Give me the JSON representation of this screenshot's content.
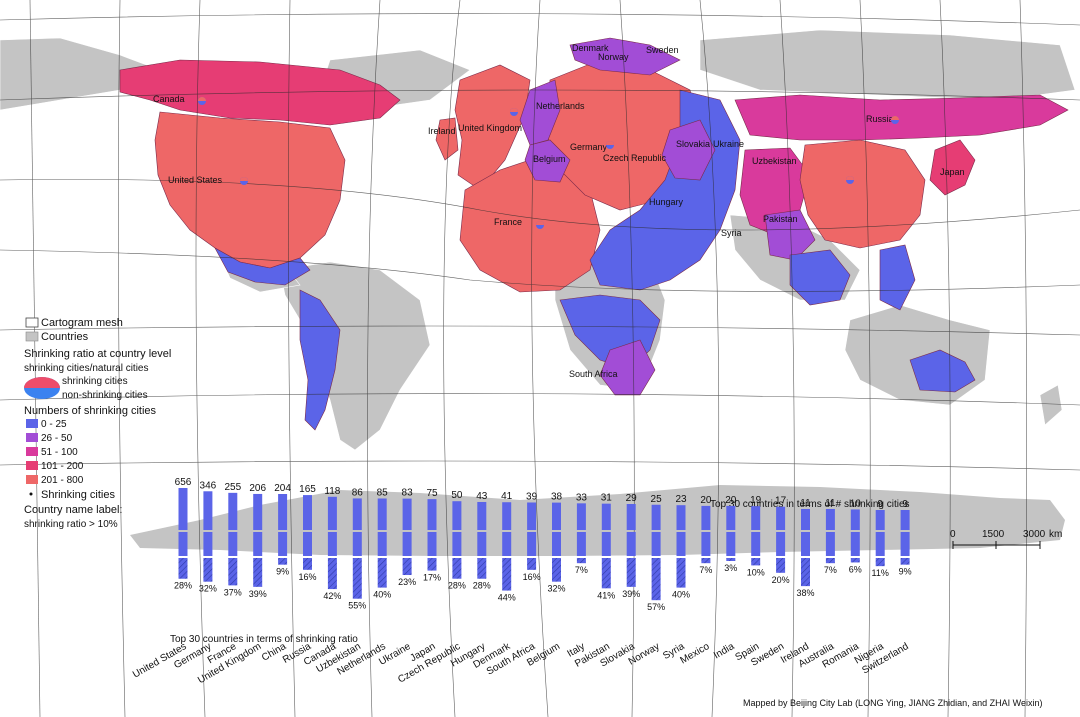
{
  "colors": {
    "ocean": "#ffffff",
    "land_gray": "#c4c4c4",
    "mesh": "#2a2a2a",
    "bin_0_25": "#5b64e8",
    "bin_26_50": "#a24dd6",
    "bin_51_100": "#d93a9c",
    "bin_101_200": "#e63d74",
    "bin_201_800": "#ee6767",
    "bar_fill": "#5b64e8"
  },
  "legend": {
    "mesh_label": "Cartogram mesh",
    "countries_label": "Countries",
    "ratio_title": "Shrinking ratio at country level",
    "ratio_sub": "shrinking cities/natural cities",
    "pie_shrinking": "shrinking cities",
    "pie_nonshrinking": "non-shrinking cities",
    "numbers_title": "Numbers of shrinking cities",
    "bins": [
      {
        "label": "0 - 25",
        "color": "#5b64e8"
      },
      {
        "label": "26 - 50",
        "color": "#a24dd6"
      },
      {
        "label": "51 - 100",
        "color": "#d93a9c"
      },
      {
        "label": "101 - 200",
        "color": "#e63d74"
      },
      {
        "label": "201 - 800",
        "color": "#ee6767"
      }
    ],
    "points_label": "Shrinking cities",
    "country_label_1": "Country name label:",
    "country_label_2": "shrinking ratio > 10%"
  },
  "map_labels": [
    "Canada",
    "United States",
    "Ireland",
    "United Kingdom",
    "Netherlands",
    "Belgium",
    "Germany",
    "France",
    "Czech Republic",
    "Denmark",
    "Norway",
    "Sweden",
    "Slovakia",
    "Ukraine",
    "Hungary",
    "Uzbekistan",
    "Russia",
    "Japan",
    "Pakistan",
    "Syria",
    "South Africa"
  ],
  "scale_bar": {
    "ticks": [
      "0",
      "1500",
      "3000"
    ],
    "unit": "km"
  },
  "credit": "Mapped by Beijing City Lab (LONG Ying, JIANG Zhidian, and ZHAI Weixin)",
  "chart_data": {
    "type": "bar",
    "title_top": "Top 30 countries in terms of # shrinking cities",
    "title_bottom": "Top 30 countries in terms of shrinking ratio",
    "categories": [
      "United States",
      "Germany",
      "France",
      "United Kingdom",
      "China",
      "Russia",
      "Canada",
      "Uzbekistan",
      "Netherlands",
      "Ukraine",
      "Japan",
      "Czech Republic",
      "Hungary",
      "Denmark",
      "South Africa",
      "Belgium",
      "Italy",
      "Pakistan",
      "Slovakia",
      "Norway",
      "Syria",
      "Mexico",
      "India",
      "Spain",
      "Sweden",
      "Ireland",
      "Australia",
      "Romania",
      "Nigeria",
      "Switzerland"
    ],
    "series": [
      {
        "name": "# shrinking cities",
        "values": [
          656,
          346,
          255,
          206,
          204,
          165,
          118,
          86,
          85,
          83,
          75,
          50,
          43,
          41,
          39,
          38,
          33,
          31,
          29,
          25,
          23,
          20,
          20,
          19,
          17,
          11,
          11,
          10,
          9,
          9
        ]
      },
      {
        "name": "shrinking ratio (%)",
        "values": [
          28,
          32,
          37,
          39,
          9,
          16,
          42,
          55,
          40,
          23,
          17,
          28,
          28,
          44,
          16,
          32,
          7,
          41,
          39,
          57,
          40,
          7,
          3,
          10,
          20,
          38,
          7,
          6,
          11,
          9
        ]
      }
    ]
  }
}
